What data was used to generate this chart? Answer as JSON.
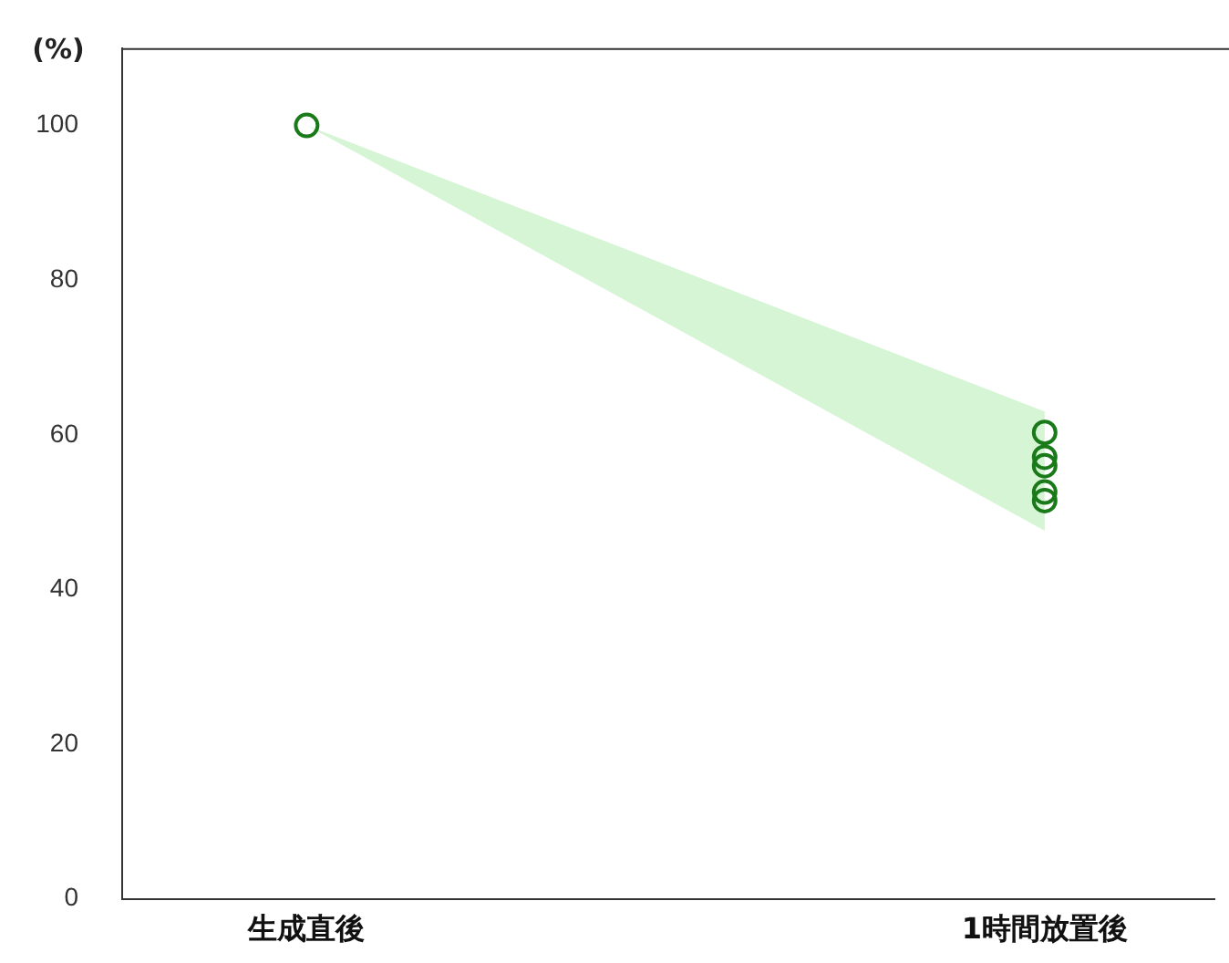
{
  "chart_data": {
    "type": "scatter",
    "ylabel": "(%)",
    "categories": [
      "生成直後",
      "1時間放置後"
    ],
    "ylim": [
      0,
      110
    ],
    "yticks": [
      0,
      20,
      40,
      60,
      80,
      100
    ],
    "grid": false,
    "legend": false,
    "marker": "circle",
    "series": [
      {
        "type": "line",
        "color": "#d5f5d5",
        "values": [
          null,
          null
        ],
        "lower": [
          100,
          47.6
        ],
        "upper": [
          100,
          63
        ]
      },
      {
        "color": "#1a7a1a",
        "x": [
          "生成直後",
          "1時間放置後",
          "1時間放置後",
          "1時間放置後",
          "1時間放置後",
          "1時間放置後",
          "1時間放置後"
        ],
        "values": [
          100,
          60.3,
          57.1,
          null,
          56,
          52.6,
          51.5
        ]
      }
    ]
  }
}
